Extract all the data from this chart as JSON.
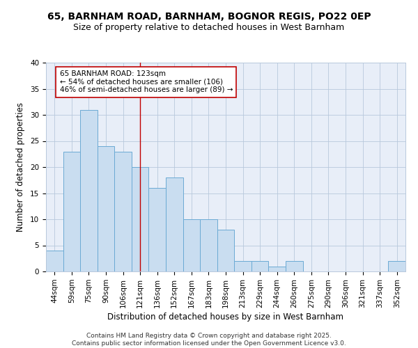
{
  "title1": "65, BARNHAM ROAD, BARNHAM, BOGNOR REGIS, PO22 0EP",
  "title2": "Size of property relative to detached houses in West Barnham",
  "xlabel": "Distribution of detached houses by size in West Barnham",
  "ylabel": "Number of detached properties",
  "categories": [
    "44sqm",
    "59sqm",
    "75sqm",
    "90sqm",
    "106sqm",
    "121sqm",
    "136sqm",
    "152sqm",
    "167sqm",
    "183sqm",
    "198sqm",
    "213sqm",
    "229sqm",
    "244sqm",
    "260sqm",
    "275sqm",
    "290sqm",
    "306sqm",
    "321sqm",
    "337sqm",
    "352sqm"
  ],
  "values": [
    4,
    23,
    31,
    24,
    23,
    20,
    16,
    18,
    10,
    10,
    8,
    2,
    2,
    1,
    2,
    0,
    0,
    0,
    0,
    0,
    2
  ],
  "bar_color": "#c9ddf0",
  "bar_edge_color": "#6baad4",
  "highlight_index": 5,
  "highlight_line_color": "#c00000",
  "annotation_text": "65 BARNHAM ROAD: 123sqm\n← 54% of detached houses are smaller (106)\n46% of semi-detached houses are larger (89) →",
  "annotation_box_color": "#ffffff",
  "annotation_box_edge": "#c00000",
  "ylim": [
    0,
    40
  ],
  "yticks": [
    0,
    5,
    10,
    15,
    20,
    25,
    30,
    35,
    40
  ],
  "grid_color": "#b8c8dc",
  "bg_color": "#e8eef8",
  "footer": "Contains HM Land Registry data © Crown copyright and database right 2025.\nContains public sector information licensed under the Open Government Licence v3.0.",
  "title_fontsize": 10,
  "subtitle_fontsize": 9,
  "axis_label_fontsize": 8.5,
  "tick_fontsize": 7.5,
  "annotation_fontsize": 7.5,
  "footer_fontsize": 6.5
}
